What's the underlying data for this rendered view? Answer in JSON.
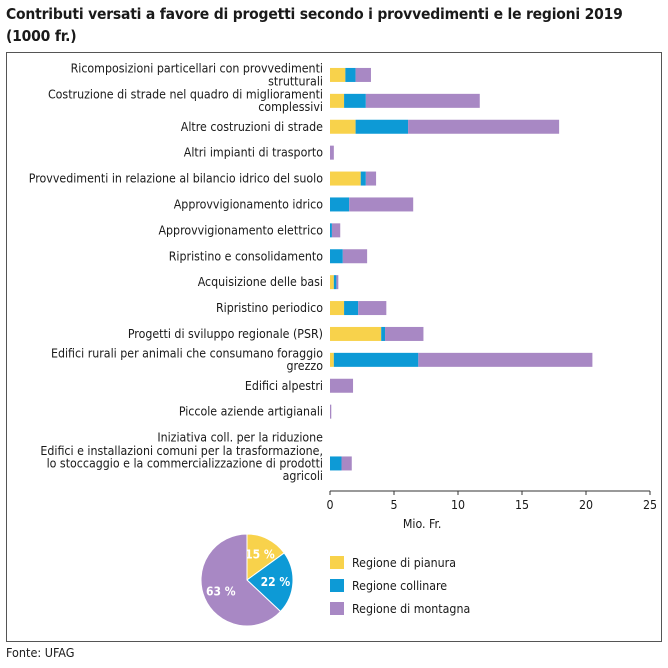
{
  "chart_data": [
    {
      "type": "bar",
      "stacked": true,
      "orientation": "horizontal",
      "title": "Contributi versati a favore di progetti secondo i provvedimenti e le regioni 2019 (1000 fr.)",
      "xlabel": "Mio. Fr.",
      "ylabel": "",
      "xlim": [
        0,
        25
      ],
      "xticks": [
        0,
        5,
        10,
        15,
        20,
        25
      ],
      "grid": false,
      "legend_position": "bottom-right",
      "categories": [
        [
          "Ricomposizioni particellari con provvedimenti",
          "strutturali"
        ],
        [
          "Costruzione di strade nel quadro di miglioramenti",
          "complessivi"
        ],
        [
          "Altre costruzioni di strade"
        ],
        [
          "Altri impianti di trasporto"
        ],
        [
          "Provvedimenti in relazione al bilancio idrico del suolo"
        ],
        [
          "Approvvigionamento idrico"
        ],
        [
          "Approvvigionamento elettrico"
        ],
        [
          "Ripristino e consolidamento"
        ],
        [
          "Acquisizione delle basi"
        ],
        [
          "Ripristino periodico"
        ],
        [
          "Progetti di sviluppo regionale (PSR)"
        ],
        [
          "Edifici rurali per animali che consumano foraggio",
          "grezzo"
        ],
        [
          "Edifici alpestri"
        ],
        [
          "Piccole aziende artigianali"
        ],
        [
          "Iniziativa coll. per la riduzione"
        ],
        [
          "Edifici e installazioni comuni per la trasformazione,",
          "lo stoccaggio e la commercializzazione di prodotti",
          "agricoli"
        ]
      ],
      "series": [
        {
          "name": "Regione di pianura",
          "color": "#f8d24b",
          "values": [
            1.2,
            1.1,
            2.0,
            0.0,
            2.4,
            0.0,
            0.0,
            0.0,
            0.3,
            1.1,
            4.0,
            0.3,
            0.0,
            0.0,
            0.0,
            0.0
          ]
        },
        {
          "name": "Regione collinare",
          "color": "#0d9ad6",
          "values": [
            0.8,
            1.7,
            4.1,
            0.0,
            0.4,
            1.5,
            0.15,
            1.0,
            0.2,
            1.1,
            0.3,
            6.6,
            0.0,
            0.0,
            0.0,
            0.9
          ]
        },
        {
          "name": "Regione di montagna",
          "color": "#a888c4",
          "values": [
            1.2,
            8.9,
            11.8,
            0.3,
            0.8,
            5.0,
            0.65,
            1.9,
            0.15,
            2.2,
            3.0,
            13.6,
            1.8,
            0.1,
            0.0,
            0.8
          ]
        }
      ]
    },
    {
      "type": "pie",
      "slices": [
        {
          "name": "Regione di pianura",
          "value": 15,
          "label": "15 %",
          "color": "#f8d24b"
        },
        {
          "name": "Regione collinare",
          "value": 22,
          "label": "22 %",
          "color": "#0d9ad6"
        },
        {
          "name": "Regione di montagna",
          "value": 63,
          "label": "63 %",
          "color": "#a888c4"
        }
      ]
    }
  ],
  "source": "Fonte: UFAG"
}
